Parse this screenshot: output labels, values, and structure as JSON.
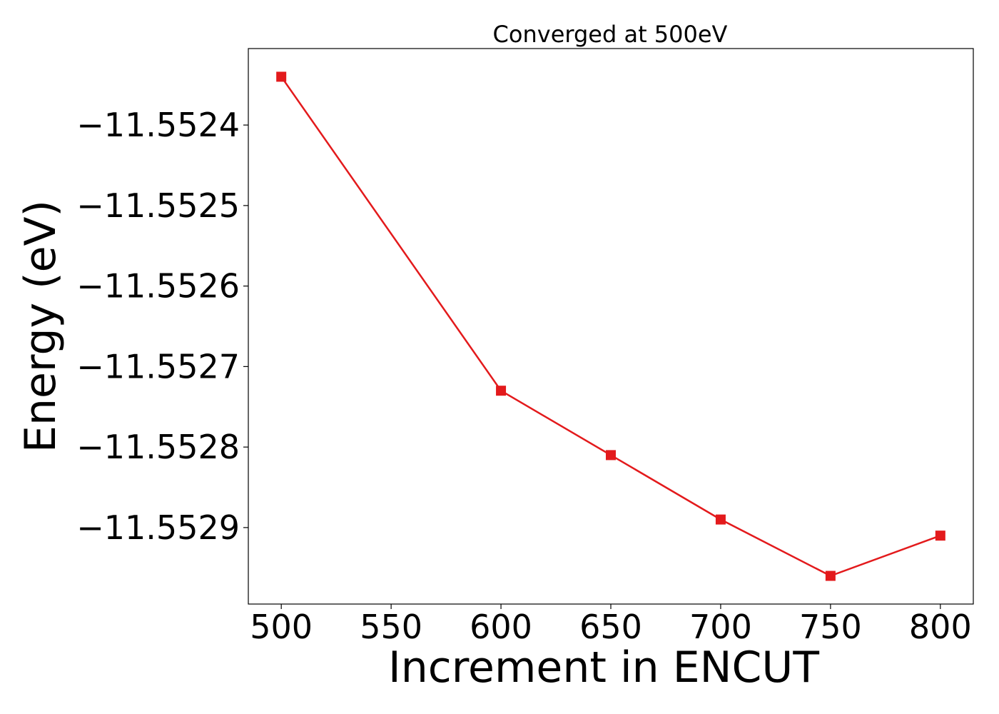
{
  "chart_data": {
    "type": "line",
    "title": "Converged at 500eV",
    "xlabel": "Increment in ENCUT",
    "ylabel": "Energy (eV)",
    "x": [
      500,
      600,
      650,
      700,
      750,
      800
    ],
    "series": [
      {
        "values": [
          -11.55234,
          -11.55273,
          -11.55281,
          -11.55289,
          -11.55296,
          -11.55291
        ],
        "color": "#e31a1c",
        "marker": "square"
      }
    ],
    "xticks": [
      500,
      550,
      600,
      650,
      700,
      750,
      800
    ],
    "xtick_labels": [
      "500",
      "550",
      "600",
      "650",
      "700",
      "750",
      "800"
    ],
    "yticks": [
      -11.5524,
      -11.5525,
      -11.5526,
      -11.5527,
      -11.5528,
      -11.5529
    ],
    "ytick_labels": [
      "−11.5524",
      "−11.5525",
      "−11.5526",
      "−11.5527",
      "−11.5528",
      "−11.5529"
    ],
    "xlim": [
      485,
      815
    ],
    "ylim": [
      -11.552995,
      -11.552305
    ],
    "grid": false,
    "legend": "none"
  }
}
